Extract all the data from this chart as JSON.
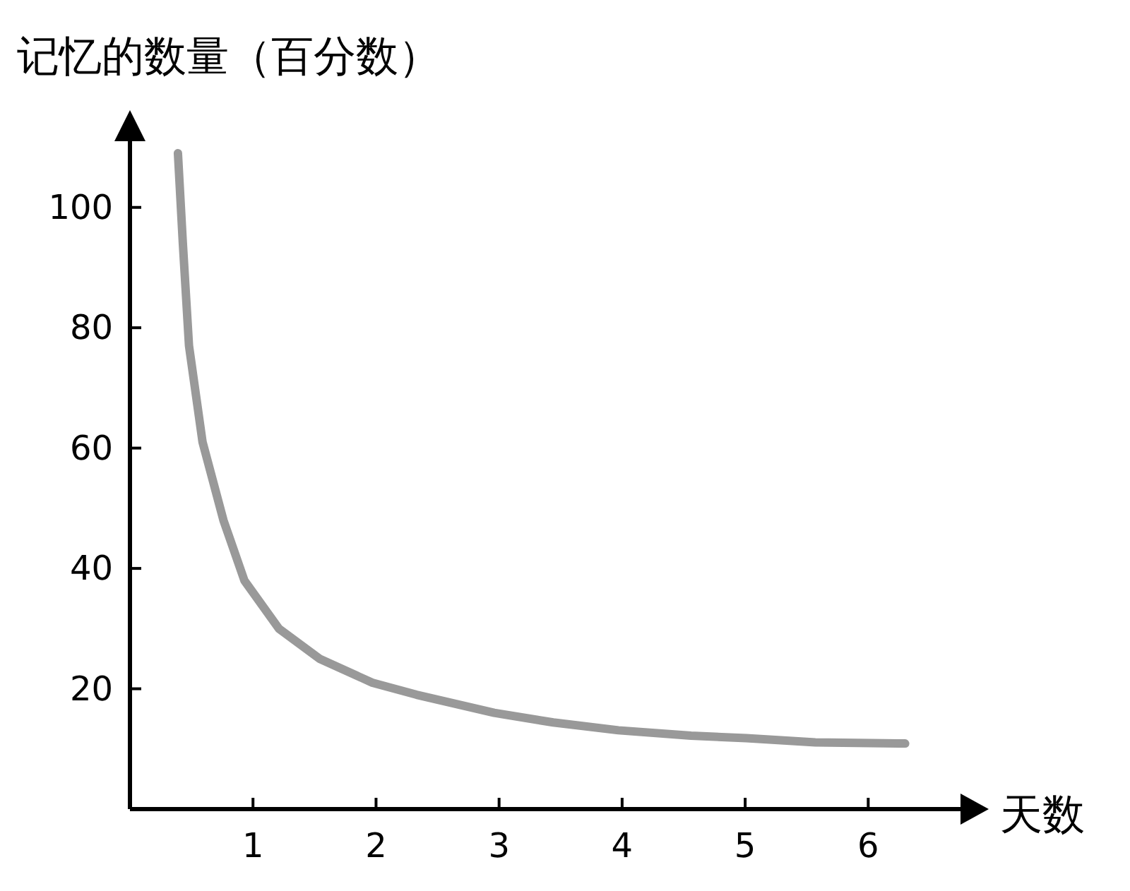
{
  "chart_data": {
    "type": "line",
    "xlabel": "天数",
    "ylabel": "记忆的数量（百分数）",
    "x": [
      0.39,
      0.43,
      0.48,
      0.59,
      0.76,
      0.93,
      1.21,
      1.54,
      1.97,
      2.33,
      2.96,
      3.44,
      3.97,
      4.56,
      5.01,
      5.57,
      6.3
    ],
    "series": [
      {
        "color": "#999999",
        "values": [
          109,
          94,
          77,
          61,
          48,
          38,
          30,
          25,
          21,
          19,
          16,
          14.4,
          13.1,
          12.2,
          11.8,
          11.1,
          10.9
        ]
      }
    ],
    "xlim": [
      0,
      6.75
    ],
    "ylim": [
      0,
      111
    ],
    "xticks": [
      1,
      2,
      3,
      4,
      5,
      6
    ],
    "yticks": [
      20,
      40,
      60,
      80,
      100
    ],
    "grid": false,
    "marker": "none",
    "line_style": "solid"
  }
}
